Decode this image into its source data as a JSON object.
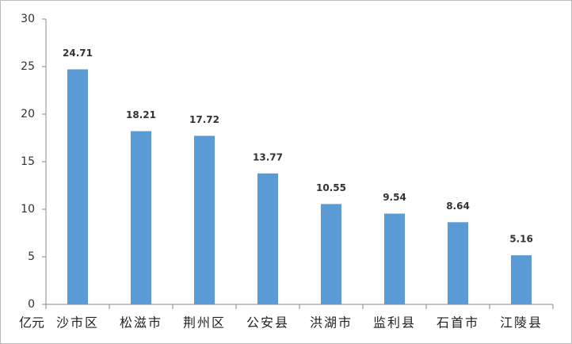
{
  "chart_data": {
    "type": "bar",
    "y_unit": "亿元",
    "categories": [
      "沙市区",
      "松滋市",
      "荆州区",
      "公安县",
      "洪湖市",
      "监利县",
      "石首市",
      "江陵县"
    ],
    "values": [
      24.71,
      18.21,
      17.72,
      13.77,
      10.55,
      9.54,
      8.64,
      5.16
    ],
    "color": "#5b9bd5",
    "ylim": [
      0,
      30
    ],
    "yticks": [
      0,
      5,
      10,
      15,
      20,
      25,
      30
    ],
    "grid": false
  }
}
